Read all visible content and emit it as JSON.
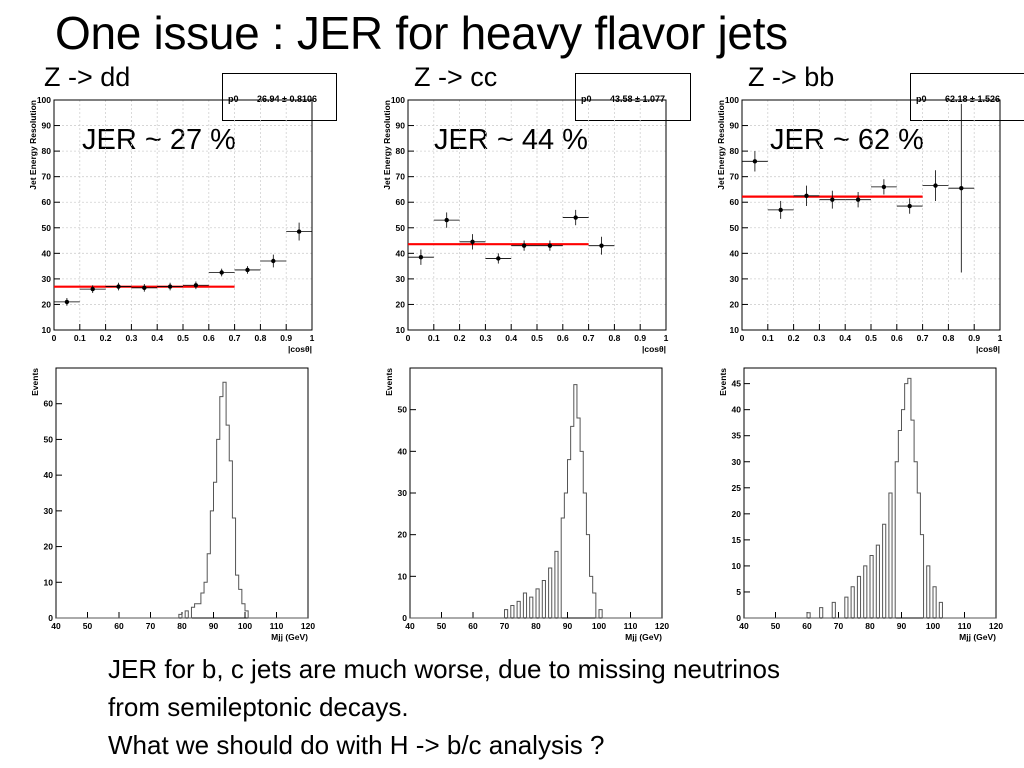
{
  "slide": {
    "title": "One issue : JER for heavy flavor jets",
    "footer": [
      "JER for b, c jets are much worse, due to missing neutrinos",
      "from semileptonic decays.",
      "What we should do with H -> b/c analysis ?"
    ]
  },
  "panels": [
    {
      "process": "Z -> dd",
      "jer_label": "JER ~ 27 %",
      "stat_key": "p0",
      "stat_value": "26.94 ± 0.8106"
    },
    {
      "process": "Z -> cc",
      "jer_label": "JER ~ 44 %",
      "stat_key": "p0",
      "stat_value": "43.58 ± 1.077"
    },
    {
      "process": "Z -> bb",
      "jer_label": "JER ~ 62 %",
      "stat_key": "p0",
      "stat_value": "62.18 ± 1.526"
    }
  ],
  "colors": {
    "fit_line": "#ff0000",
    "grid": "#d0d0d0",
    "histogram": "#555555",
    "marker": "#000000"
  },
  "chart_data": [
    {
      "type": "scatter",
      "title": "",
      "xlabel": "|cosθ|",
      "ylabel": "Jet Energy Resolution",
      "xlim": [
        0,
        1
      ],
      "ylim": [
        10,
        100
      ],
      "grid": true,
      "xticks": [
        0,
        0.1,
        0.2,
        0.3,
        0.4,
        0.5,
        0.6,
        0.7,
        0.8,
        0.9,
        1
      ],
      "yticks": [
        10,
        20,
        30,
        40,
        50,
        60,
        70,
        80,
        90,
        100
      ],
      "x": [
        0.05,
        0.15,
        0.25,
        0.35,
        0.45,
        0.55,
        0.65,
        0.75,
        0.85,
        0.95
      ],
      "y": [
        21,
        26,
        27,
        26.5,
        27,
        27.5,
        32.5,
        33.5,
        37,
        48.5
      ],
      "yerr": [
        1.5,
        1.5,
        1.5,
        1.5,
        1.5,
        1.5,
        1.5,
        1.5,
        2.5,
        3.5
      ],
      "fit": {
        "value": 26.94,
        "x_range": [
          0,
          0.7
        ]
      }
    },
    {
      "type": "scatter",
      "title": "",
      "xlabel": "|cosθ|",
      "ylabel": "Jet Energy Resolution",
      "xlim": [
        0,
        1
      ],
      "ylim": [
        10,
        100
      ],
      "grid": true,
      "xticks": [
        0,
        0.1,
        0.2,
        0.3,
        0.4,
        0.5,
        0.6,
        0.7,
        0.8,
        0.9,
        1
      ],
      "yticks": [
        10,
        20,
        30,
        40,
        50,
        60,
        70,
        80,
        90,
        100
      ],
      "x": [
        0.05,
        0.15,
        0.25,
        0.35,
        0.45,
        0.55,
        0.65,
        0.75
      ],
      "y": [
        38.5,
        53,
        44.5,
        38,
        43,
        43,
        54,
        43
      ],
      "yerr": [
        3,
        3,
        3,
        2,
        2,
        2,
        3,
        3.5
      ],
      "fit": {
        "value": 43.58,
        "x_range": [
          0,
          0.7
        ]
      }
    },
    {
      "type": "scatter",
      "title": "",
      "xlabel": "|cosθ|",
      "ylabel": "Jet Energy Resolution",
      "xlim": [
        0,
        1
      ],
      "ylim": [
        10,
        100
      ],
      "grid": true,
      "xticks": [
        0,
        0.1,
        0.2,
        0.3,
        0.4,
        0.5,
        0.6,
        0.7,
        0.8,
        0.9,
        1
      ],
      "yticks": [
        10,
        20,
        30,
        40,
        50,
        60,
        70,
        80,
        90,
        100
      ],
      "x": [
        0.05,
        0.15,
        0.25,
        0.35,
        0.45,
        0.55,
        0.65,
        0.75,
        0.85
      ],
      "y": [
        76,
        57,
        62.5,
        61,
        61,
        66,
        58.5,
        66.5,
        65.5
      ],
      "yerr": [
        4,
        3.5,
        4,
        3.5,
        3,
        3,
        3,
        6,
        33
      ],
      "fit": {
        "value": 62.18,
        "x_range": [
          0,
          0.7
        ]
      }
    },
    {
      "type": "bar",
      "title": "",
      "xlabel": "Mjj (GeV)",
      "ylabel": "Events",
      "xlim": [
        40,
        120
      ],
      "ylim": [
        0,
        70
      ],
      "xticks": [
        40,
        50,
        60,
        70,
        80,
        90,
        100,
        110,
        120
      ],
      "yticks": [
        0,
        10,
        20,
        30,
        40,
        50,
        60
      ],
      "x": [
        79,
        81,
        83,
        84,
        85,
        86,
        87,
        88,
        89,
        90,
        91,
        92,
        93,
        94,
        95,
        96,
        97,
        98,
        99,
        100
      ],
      "values": [
        1,
        2,
        3,
        4,
        4,
        7,
        10,
        18,
        30,
        38,
        50,
        62,
        66,
        54,
        44,
        28,
        12,
        8,
        4,
        2
      ]
    },
    {
      "type": "bar",
      "title": "",
      "xlabel": "Mjj (GeV)",
      "ylabel": "Events",
      "xlim": [
        40,
        120
      ],
      "ylim": [
        0,
        60
      ],
      "xticks": [
        40,
        50,
        60,
        70,
        80,
        90,
        100,
        110,
        120
      ],
      "yticks": [
        0,
        10,
        20,
        30,
        40,
        50
      ],
      "x": [
        70,
        72,
        74,
        76,
        78,
        80,
        82,
        84,
        86,
        88,
        89,
        90,
        91,
        92,
        93,
        94,
        95,
        96,
        97,
        98,
        100
      ],
      "values": [
        2,
        3,
        4,
        6,
        5,
        7,
        9,
        12,
        16,
        24,
        30,
        38,
        46,
        56,
        48,
        40,
        30,
        20,
        10,
        6,
        2
      ]
    },
    {
      "type": "bar",
      "title": "",
      "xlabel": "Mjj (GeV)",
      "ylabel": "Events",
      "xlim": [
        40,
        120
      ],
      "ylim": [
        0,
        48
      ],
      "xticks": [
        40,
        50,
        60,
        70,
        80,
        90,
        100,
        110,
        120
      ],
      "yticks": [
        0,
        5,
        10,
        15,
        20,
        25,
        30,
        35,
        40,
        45
      ],
      "x": [
        60,
        64,
        68,
        72,
        74,
        76,
        78,
        80,
        82,
        84,
        86,
        88,
        89,
        90,
        91,
        92,
        93,
        94,
        95,
        96,
        98,
        100,
        102
      ],
      "values": [
        1,
        2,
        3,
        4,
        6,
        8,
        10,
        12,
        14,
        18,
        24,
        30,
        36,
        40,
        45,
        46,
        38,
        30,
        24,
        16,
        10,
        6,
        3
      ]
    }
  ]
}
